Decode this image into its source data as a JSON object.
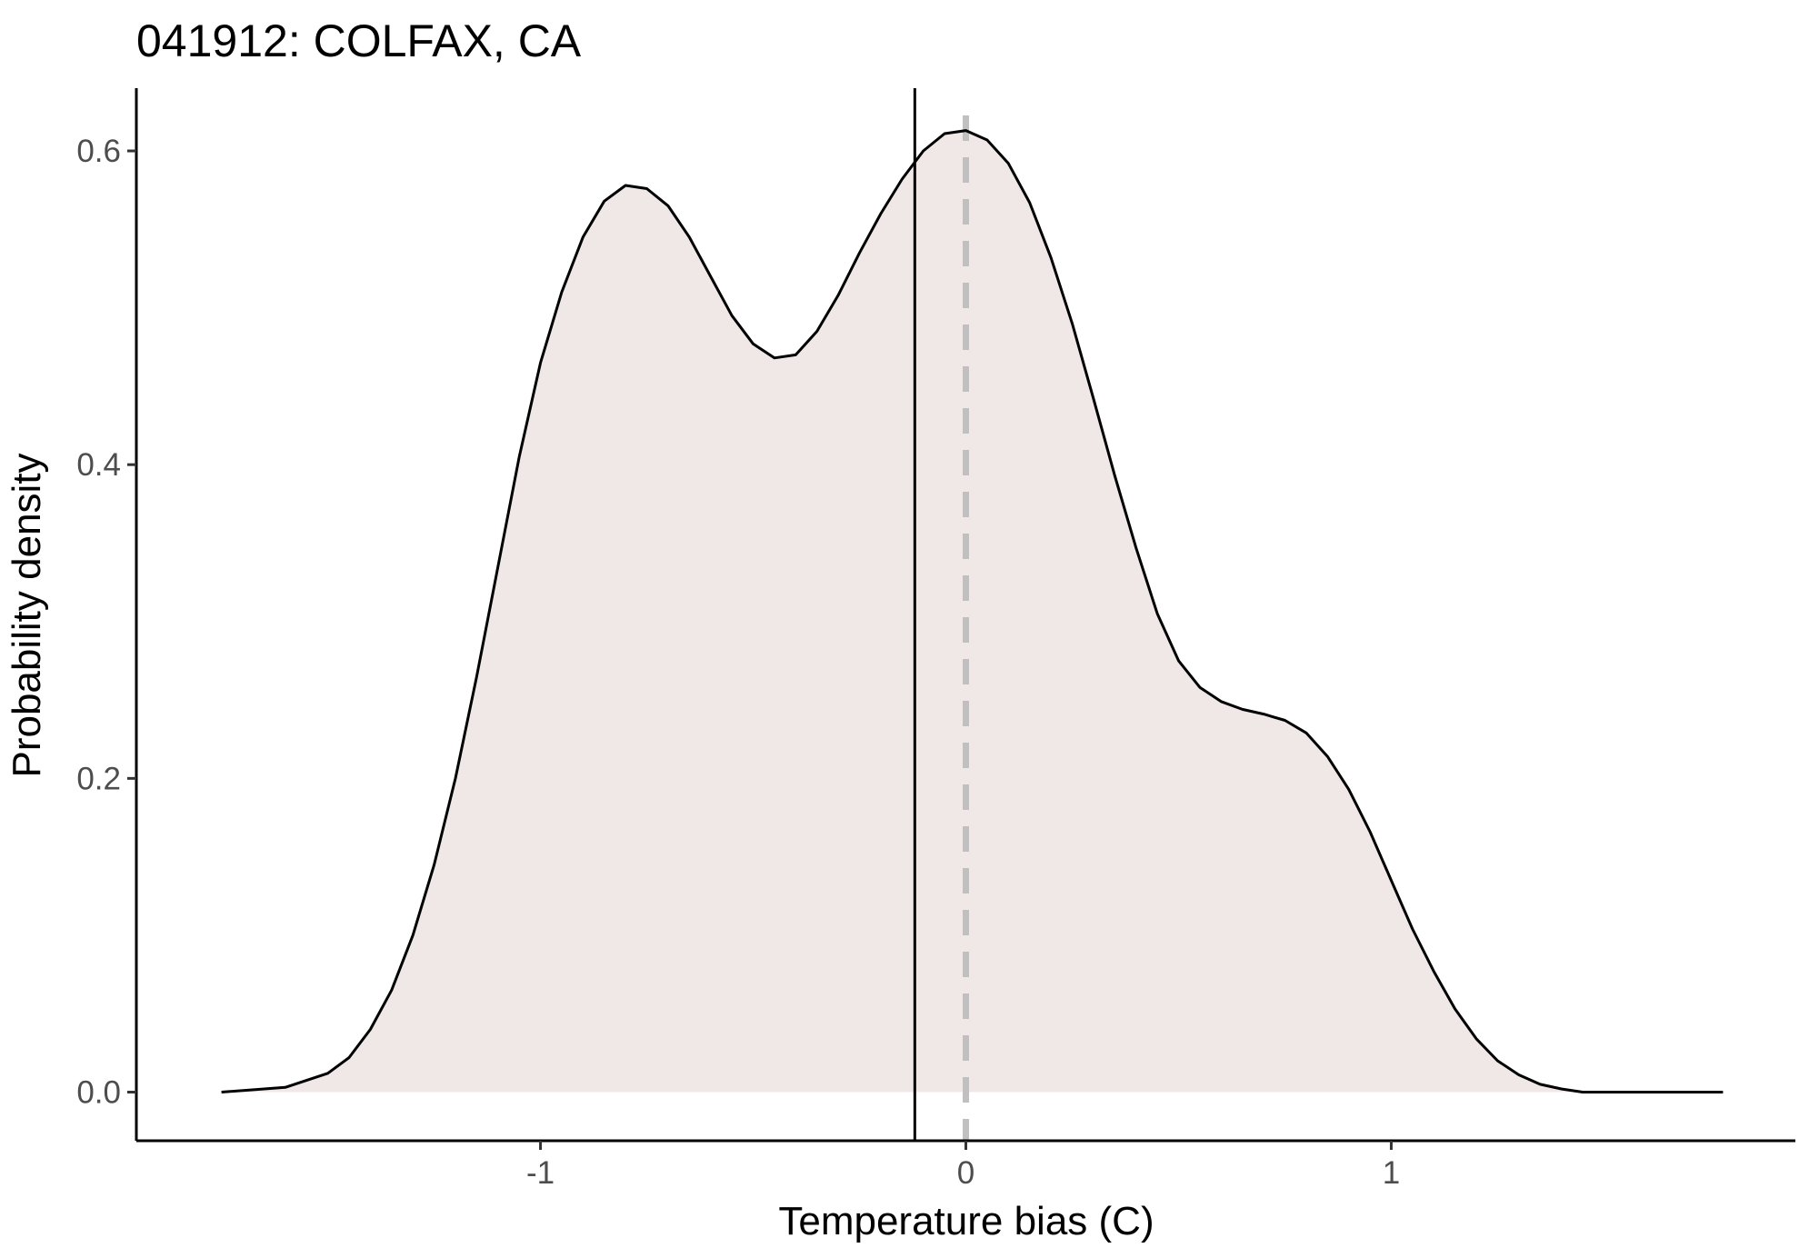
{
  "chart_data": {
    "type": "area",
    "title": "041912: COLFAX, CA",
    "xlabel": "Temperature bias (C)",
    "ylabel": "Probability density",
    "xlim": [
      -1.95,
      1.95
    ],
    "ylim": [
      -0.031,
      0.64
    ],
    "x_ticks": [
      -1,
      0,
      1
    ],
    "x_tick_labels": [
      "-1",
      "0",
      "1"
    ],
    "y_ticks": [
      0.0,
      0.2,
      0.4,
      0.6
    ],
    "y_tick_labels": [
      "0.0",
      "0.2",
      "0.4",
      "0.6"
    ],
    "grid": false,
    "series": [
      {
        "x": [
          -1.75,
          -1.6,
          -1.5,
          -1.45,
          -1.4,
          -1.35,
          -1.3,
          -1.25,
          -1.2,
          -1.15,
          -1.1,
          -1.05,
          -1.0,
          -0.95,
          -0.9,
          -0.85,
          -0.8,
          -0.75,
          -0.7,
          -0.65,
          -0.6,
          -0.55,
          -0.5,
          -0.45,
          -0.4,
          -0.35,
          -0.3,
          -0.25,
          -0.2,
          -0.15,
          -0.1,
          -0.05,
          0.0,
          0.05,
          0.1,
          0.15,
          0.2,
          0.25,
          0.3,
          0.35,
          0.4,
          0.45,
          0.5,
          0.55,
          0.6,
          0.65,
          0.7,
          0.75,
          0.8,
          0.85,
          0.9,
          0.95,
          1.0,
          1.05,
          1.1,
          1.15,
          1.2,
          1.25,
          1.3,
          1.35,
          1.4,
          1.45,
          1.5,
          1.55,
          1.6,
          1.7,
          1.78
        ],
        "values": [
          0.0,
          0.003,
          0.012,
          0.022,
          0.04,
          0.065,
          0.1,
          0.145,
          0.2,
          0.265,
          0.335,
          0.405,
          0.465,
          0.51,
          0.545,
          0.568,
          0.578,
          0.576,
          0.565,
          0.545,
          0.52,
          0.495,
          0.477,
          0.468,
          0.47,
          0.485,
          0.508,
          0.535,
          0.56,
          0.582,
          0.6,
          0.611,
          0.613,
          0.607,
          0.592,
          0.567,
          0.532,
          0.49,
          0.442,
          0.393,
          0.347,
          0.305,
          0.275,
          0.258,
          0.249,
          0.244,
          0.241,
          0.237,
          0.229,
          0.214,
          0.193,
          0.166,
          0.135,
          0.104,
          0.077,
          0.053,
          0.034,
          0.02,
          0.011,
          0.005,
          0.002,
          0.0,
          0.0,
          0.0,
          0.0,
          0.0,
          0.0
        ],
        "fill_color": "#efe8e6",
        "line_color": "#000000"
      }
    ],
    "vlines": [
      {
        "x": -0.12,
        "style": "solid",
        "color": "#000000"
      },
      {
        "x": 0.0,
        "style": "dashed",
        "color": "#c0c0c0"
      }
    ]
  }
}
